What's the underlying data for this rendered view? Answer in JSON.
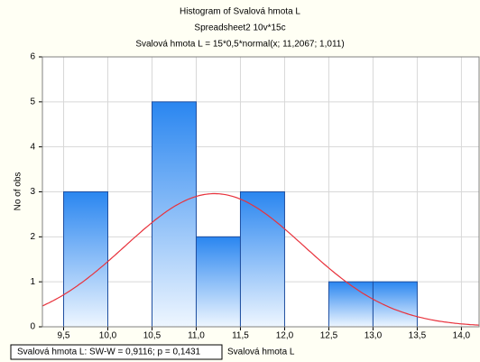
{
  "chart_data": {
    "type": "histogram",
    "title": "Histogram of Svalová hmota L",
    "subtitle": "Spreadsheet2 10v*15c",
    "formula": "Svalová hmota L = 15*0,5*normal(x; 11,2067; 1,011)",
    "x_label": "Svalová hmota L",
    "y_label": "No of obs",
    "stats_box": "Svalová hmota L:  SW-W = 0,9116; p = 0,1431",
    "bins": [
      9.5,
      10.0,
      10.5,
      11.0,
      11.5,
      12.0,
      12.5,
      13.0,
      13.5
    ],
    "values": [
      3,
      0,
      5,
      2,
      3,
      0,
      1,
      1
    ],
    "color": "#2a86f0",
    "fit": {
      "scale": 15,
      "bin_width": 0.5,
      "mean": 11.2067,
      "sd": 1.011,
      "color": "#e8323c"
    },
    "xlim": [
      9.26,
      14.2
    ],
    "ylim": [
      0,
      6
    ],
    "xticks": [
      {
        "value": 9.5,
        "label": "9,5"
      },
      {
        "value": 10.0,
        "label": "10,0"
      },
      {
        "value": 10.5,
        "label": "10,5"
      },
      {
        "value": 11.0,
        "label": "11,0"
      },
      {
        "value": 11.5,
        "label": "11,5"
      },
      {
        "value": 12.0,
        "label": "12,0"
      },
      {
        "value": 12.5,
        "label": "12,5"
      },
      {
        "value": 13.0,
        "label": "13,0"
      },
      {
        "value": 13.5,
        "label": "13,5"
      },
      {
        "value": 14.0,
        "label": "14,0"
      }
    ],
    "yticks": [
      0,
      1,
      2,
      3,
      4,
      5,
      6
    ],
    "grid": true
  }
}
